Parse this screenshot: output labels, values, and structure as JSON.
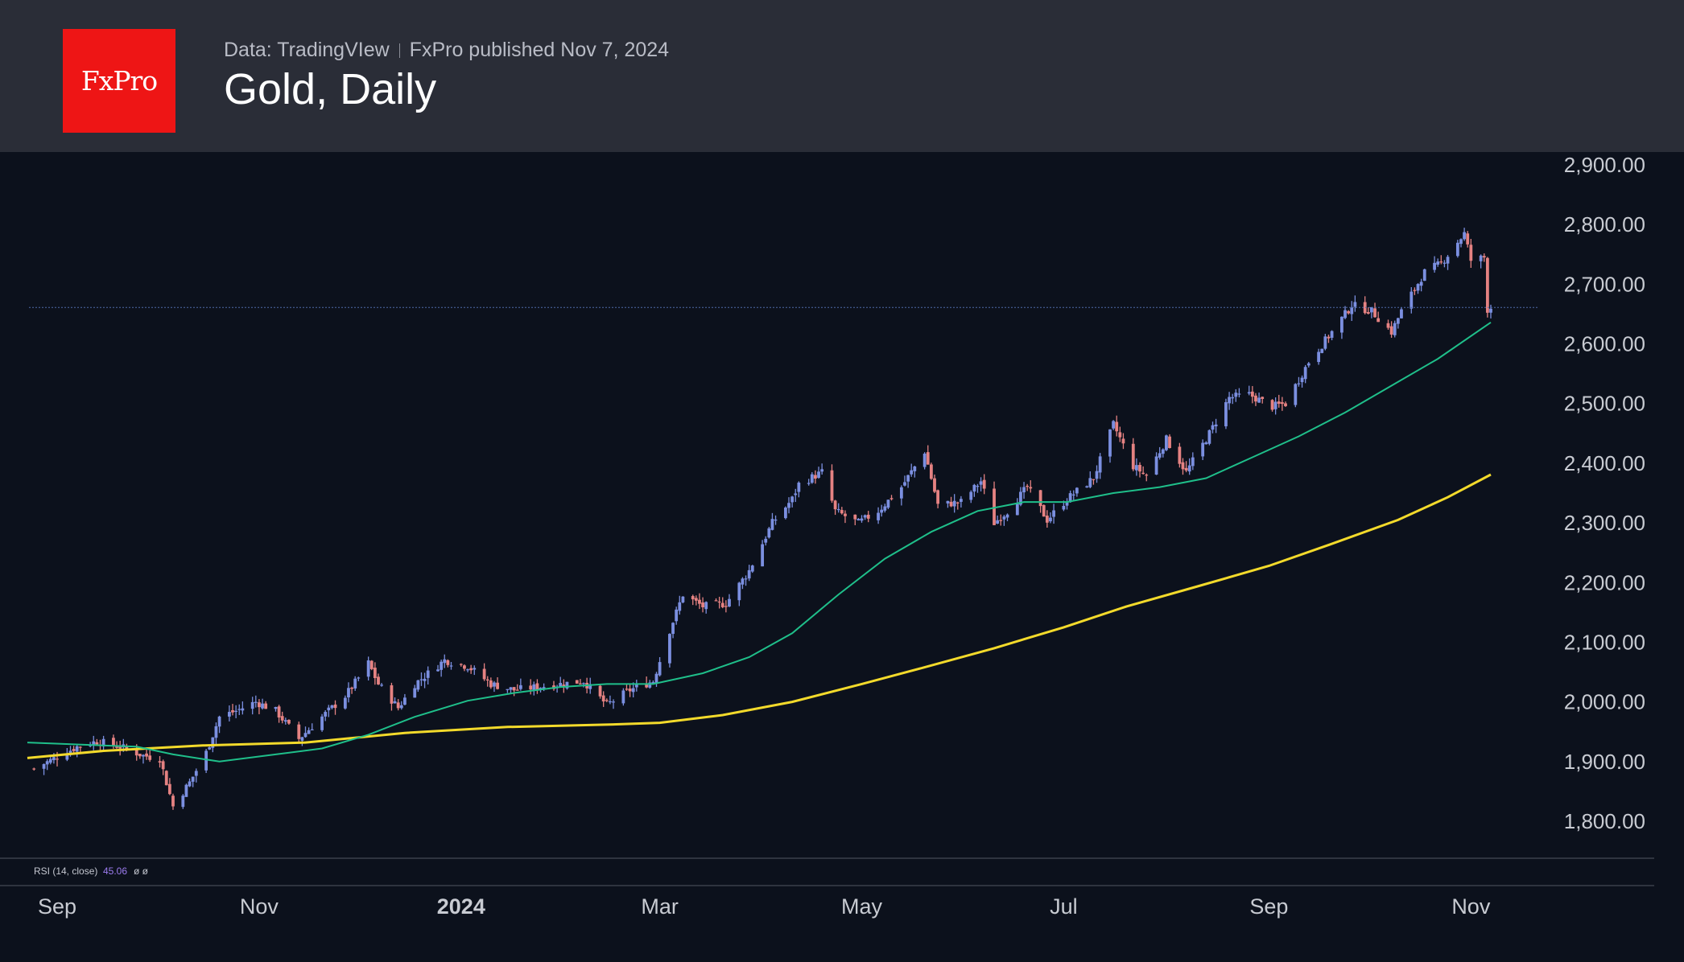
{
  "header": {
    "logo_text": "FxPro",
    "source": "Data: TradingVIew",
    "published": "FxPro published Nov 7, 2024",
    "title": "Gold, Daily"
  },
  "rsi_label": "RSI (14, close)",
  "rsi_value": "45.06",
  "rsi_extra": "ø ø",
  "colors": {
    "up": "#7b8fe0",
    "down": "#e58282",
    "ma_fast": "#1fbf8a",
    "ma_slow": "#f3da2b",
    "background": "#0c111c",
    "header": "#2a2d37",
    "logo": "#ee1515"
  },
  "chart_data": {
    "type": "candlestick",
    "title": "Gold, Daily",
    "y_ticks": [
      "2,900.00",
      "2,800.00",
      "2,700.00",
      "2,600.00",
      "2,500.00",
      "2,400.00",
      "2,300.00",
      "2,200.00",
      "2,100.00",
      "2,000.00",
      "1,900.00",
      "1,800.00"
    ],
    "y_range": [
      1740,
      2920
    ],
    "x_ticks": [
      {
        "label": "Sep",
        "date": "2023-09-01"
      },
      {
        "label": "Nov",
        "date": "2023-11-01"
      },
      {
        "label": "2024",
        "date": "2024-01-01"
      },
      {
        "label": "Mar",
        "date": "2024-03-01"
      },
      {
        "label": "May",
        "date": "2024-05-01"
      },
      {
        "label": "Jul",
        "date": "2024-07-01"
      },
      {
        "label": "Sep",
        "date": "2024-09-01"
      },
      {
        "label": "Nov",
        "date": "2024-11-01"
      }
    ],
    "x_range": [
      "2023-08-23",
      "2024-11-07"
    ],
    "last_price": 2661,
    "close_series": [
      [
        "2023-08-25",
        1888
      ],
      [
        "2023-09-01",
        1908
      ],
      [
        "2023-09-07",
        1925
      ],
      [
        "2023-09-13",
        1934
      ],
      [
        "2023-09-20",
        1925
      ],
      [
        "2023-09-27",
        1910
      ],
      [
        "2023-10-02",
        1905
      ],
      [
        "2023-10-06",
        1825
      ],
      [
        "2023-10-11",
        1865
      ],
      [
        "2023-10-16",
        1915
      ],
      [
        "2023-10-20",
        1975
      ],
      [
        "2023-10-25",
        1985
      ],
      [
        "2023-10-31",
        2000
      ],
      [
        "2023-11-06",
        1985
      ],
      [
        "2023-11-13",
        1938
      ],
      [
        "2023-11-20",
        1975
      ],
      [
        "2023-11-27",
        2010
      ],
      [
        "2023-12-01",
        2040
      ],
      [
        "2023-12-04",
        2065
      ],
      [
        "2023-12-07",
        2030
      ],
      [
        "2023-12-13",
        1990
      ],
      [
        "2023-12-18",
        2030
      ],
      [
        "2023-12-27",
        2070
      ],
      [
        "2024-01-03",
        2060
      ],
      [
        "2024-01-10",
        2030
      ],
      [
        "2024-01-17",
        2020
      ],
      [
        "2024-01-24",
        2025
      ],
      [
        "2024-01-31",
        2030
      ],
      [
        "2024-02-07",
        2035
      ],
      [
        "2024-02-14",
        1995
      ],
      [
        "2024-02-21",
        2020
      ],
      [
        "2024-02-28",
        2035
      ],
      [
        "2024-03-04",
        2120
      ],
      [
        "2024-03-08",
        2180
      ],
      [
        "2024-03-14",
        2160
      ],
      [
        "2024-03-21",
        2165
      ],
      [
        "2024-03-28",
        2220
      ],
      [
        "2024-04-04",
        2300
      ],
      [
        "2024-04-10",
        2340
      ],
      [
        "2024-04-12",
        2365
      ],
      [
        "2024-04-19",
        2385
      ],
      [
        "2024-04-23",
        2320
      ],
      [
        "2024-04-30",
        2300
      ],
      [
        "2024-05-06",
        2320
      ],
      [
        "2024-05-13",
        2360
      ],
      [
        "2024-05-20",
        2420
      ],
      [
        "2024-05-24",
        2330
      ],
      [
        "2024-05-31",
        2335
      ],
      [
        "2024-06-06",
        2370
      ],
      [
        "2024-06-10",
        2300
      ],
      [
        "2024-06-14",
        2320
      ],
      [
        "2024-06-20",
        2360
      ],
      [
        "2024-06-26",
        2305
      ],
      [
        "2024-07-02",
        2340
      ],
      [
        "2024-07-10",
        2375
      ],
      [
        "2024-07-16",
        2465
      ],
      [
        "2024-07-22",
        2395
      ],
      [
        "2024-07-26",
        2380
      ],
      [
        "2024-08-01",
        2440
      ],
      [
        "2024-08-07",
        2385
      ],
      [
        "2024-08-14",
        2450
      ],
      [
        "2024-08-20",
        2510
      ],
      [
        "2024-08-26",
        2515
      ],
      [
        "2024-09-02",
        2495
      ],
      [
        "2024-09-06",
        2500
      ],
      [
        "2024-09-13",
        2570
      ],
      [
        "2024-09-20",
        2620
      ],
      [
        "2024-09-26",
        2665
      ],
      [
        "2024-10-02",
        2655
      ],
      [
        "2024-10-08",
        2620
      ],
      [
        "2024-10-11",
        2655
      ],
      [
        "2024-10-18",
        2720
      ],
      [
        "2024-10-23",
        2735
      ],
      [
        "2024-10-30",
        2785
      ],
      [
        "2024-11-01",
        2740
      ],
      [
        "2024-11-05",
        2745
      ],
      [
        "2024-11-06",
        2658
      ],
      [
        "2024-11-07",
        2661
      ]
    ],
    "ma_fast": [
      [
        "2023-08-23",
        1932
      ],
      [
        "2023-09-10",
        1928
      ],
      [
        "2023-09-25",
        1925
      ],
      [
        "2023-10-06",
        1912
      ],
      [
        "2023-10-20",
        1900
      ],
      [
        "2023-11-06",
        1912
      ],
      [
        "2023-11-20",
        1922
      ],
      [
        "2023-12-04",
        1945
      ],
      [
        "2023-12-18",
        1975
      ],
      [
        "2024-01-03",
        2002
      ],
      [
        "2024-01-17",
        2015
      ],
      [
        "2024-01-31",
        2025
      ],
      [
        "2024-02-14",
        2030
      ],
      [
        "2024-02-28",
        2030
      ],
      [
        "2024-03-14",
        2048
      ],
      [
        "2024-03-28",
        2075
      ],
      [
        "2024-04-10",
        2115
      ],
      [
        "2024-04-24",
        2180
      ],
      [
        "2024-05-08",
        2240
      ],
      [
        "2024-05-22",
        2285
      ],
      [
        "2024-06-05",
        2320
      ],
      [
        "2024-06-19",
        2335
      ],
      [
        "2024-07-02",
        2335
      ],
      [
        "2024-07-16",
        2350
      ],
      [
        "2024-07-30",
        2360
      ],
      [
        "2024-08-13",
        2375
      ],
      [
        "2024-08-27",
        2410
      ],
      [
        "2024-09-10",
        2445
      ],
      [
        "2024-09-24",
        2485
      ],
      [
        "2024-10-08",
        2530
      ],
      [
        "2024-10-22",
        2575
      ],
      [
        "2024-11-07",
        2636
      ]
    ],
    "ma_slow": [
      [
        "2023-08-23",
        1906
      ],
      [
        "2023-09-15",
        1918
      ],
      [
        "2023-10-15",
        1927
      ],
      [
        "2023-11-15",
        1932
      ],
      [
        "2023-12-15",
        1948
      ],
      [
        "2024-01-15",
        1958
      ],
      [
        "2024-02-15",
        1962
      ],
      [
        "2024-03-01",
        1965
      ],
      [
        "2024-03-20",
        1978
      ],
      [
        "2024-04-10",
        2000
      ],
      [
        "2024-05-01",
        2030
      ],
      [
        "2024-05-20",
        2058
      ],
      [
        "2024-06-10",
        2090
      ],
      [
        "2024-07-01",
        2125
      ],
      [
        "2024-07-20",
        2160
      ],
      [
        "2024-08-10",
        2193
      ],
      [
        "2024-09-01",
        2228
      ],
      [
        "2024-09-20",
        2265
      ],
      [
        "2024-10-10",
        2305
      ],
      [
        "2024-10-25",
        2343
      ],
      [
        "2024-11-07",
        2381
      ]
    ]
  }
}
